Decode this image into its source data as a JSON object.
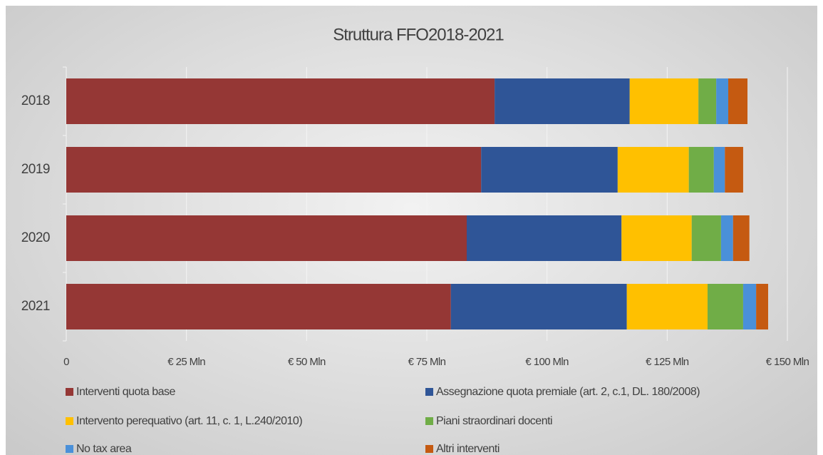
{
  "chart_data": {
    "type": "stacked-barh",
    "title": "Struttura FFO2018-2021",
    "categories": [
      "2018",
      "2019",
      "2020",
      "2021"
    ],
    "series": [
      {
        "name": "Interventi quota base",
        "color": "#953735",
        "values": [
          89.1,
          86.3,
          83.3,
          80.0
        ]
      },
      {
        "name": "Assegnazione quota premiale (art. 2, c.1, DL. 180/2008)",
        "color": "#2f5597",
        "values": [
          28.1,
          28.4,
          32.2,
          36.6
        ]
      },
      {
        "name": "Intervento perequativo (art. 11, c. 1, L.240/2010)",
        "color": "#ffc000",
        "values": [
          14.3,
          14.8,
          14.6,
          16.8
        ]
      },
      {
        "name": "Piani straordinari docenti",
        "color": "#70ad47",
        "values": [
          3.7,
          5.2,
          6.1,
          7.4
        ]
      },
      {
        "name": "No tax area",
        "color": "#4a90d9",
        "values": [
          2.5,
          2.3,
          2.5,
          2.7
        ]
      },
      {
        "name": "Altri interventi",
        "color": "#c55a11",
        "values": [
          4.0,
          3.8,
          3.4,
          2.5
        ]
      }
    ],
    "xlim": [
      0,
      150
    ],
    "xticks": [
      0,
      {
        "value": 25,
        "label": "€ 25 Mln"
      },
      {
        "value": 50,
        "label": "€ 50 Mln"
      },
      {
        "value": 75,
        "label": "€ 75 Mln"
      },
      {
        "value": 100,
        "label": "€ 100 Mln"
      },
      {
        "value": 125,
        "label": "€ 125 Mln"
      },
      {
        "value": 150,
        "label": "€ 150 Mln"
      }
    ],
    "grid": true,
    "legend": "bottom"
  }
}
